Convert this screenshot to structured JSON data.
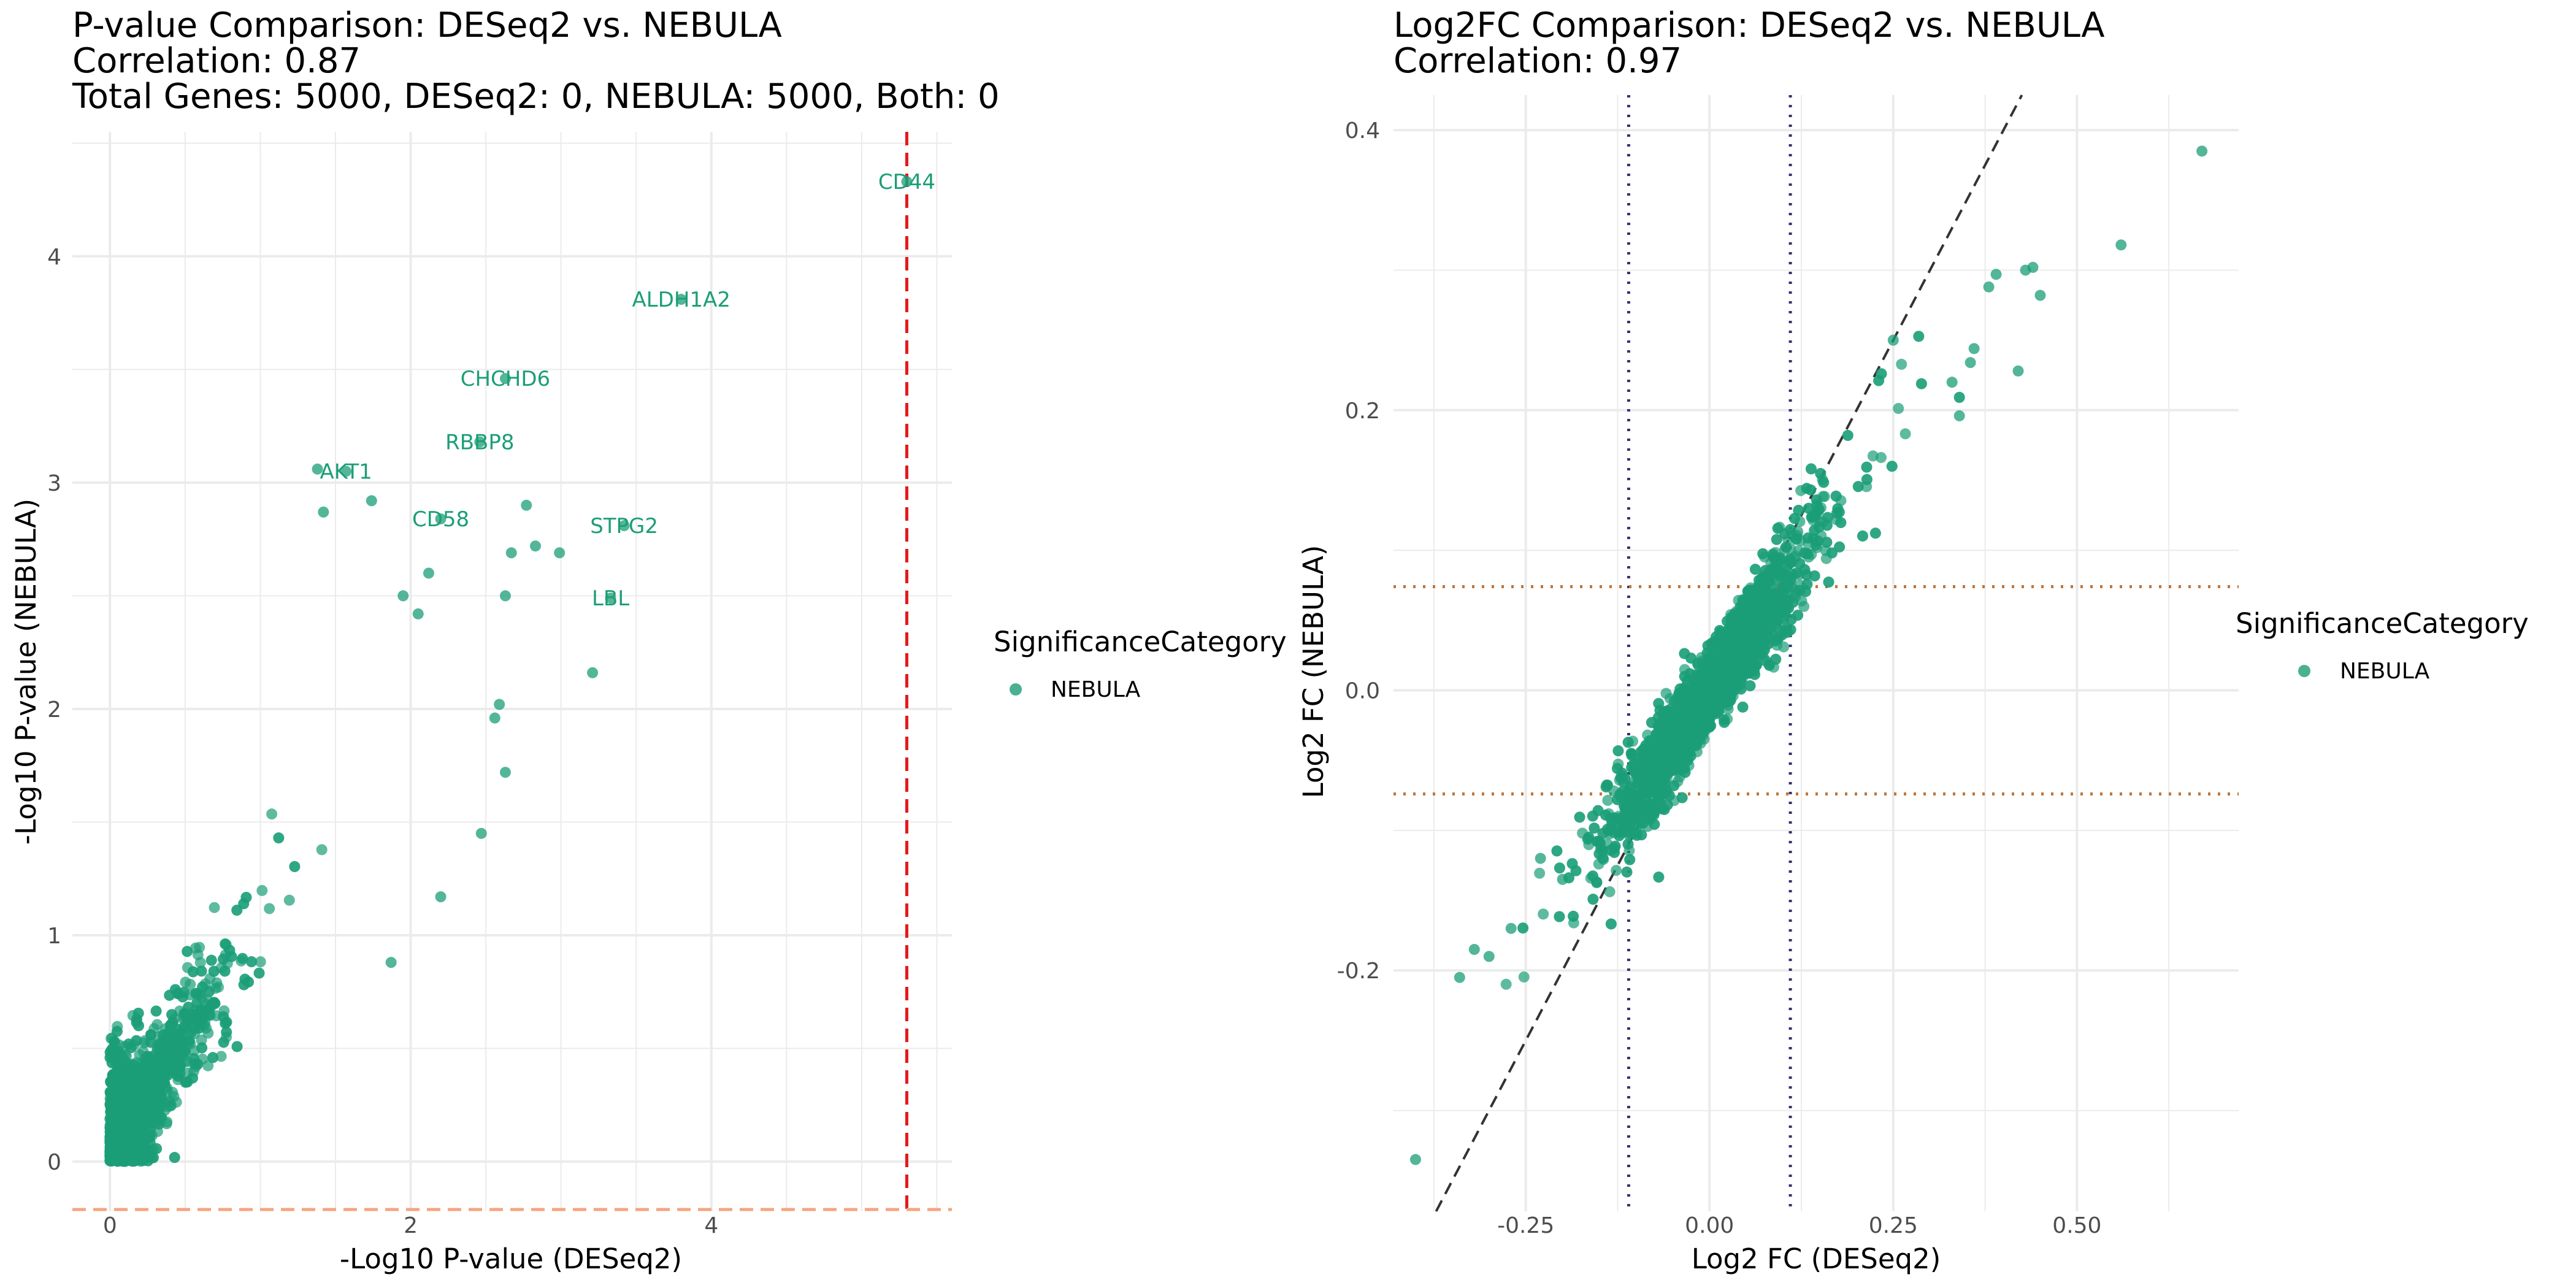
{
  "colors": {
    "nebula": "#1b9e77",
    "grid": "#ebebeb",
    "pvalue_vline": "#e31a1c",
    "pvalue_hline": "#f4a582",
    "fc_threshold_v": "#3b2f6e",
    "fc_threshold_h": "#c0763a",
    "identity_line": "#333333"
  },
  "chart_data": [
    {
      "type": "scatter",
      "title": "P-value Comparison: DESeq2 vs. NEBULA",
      "subtitle_lines": [
        "Correlation: 0.87",
        "Total Genes: 5000, DESeq2: 0, NEBULA: 5000, Both: 0"
      ],
      "xlabel": "-Log10 P-value (DESeq2)",
      "ylabel": "-Log10 P-value (NEBULA)",
      "xlim": [
        -0.25,
        5.6
      ],
      "ylim": [
        -0.22,
        4.55
      ],
      "x_ticks": [
        0,
        2,
        4
      ],
      "y_ticks": [
        0,
        1,
        2,
        3,
        4
      ],
      "grid": true,
      "reference_lines": {
        "vertical": 5.3,
        "horizontal": -0.22
      },
      "legend": {
        "title": "SignificanceCategory",
        "entries": [
          "NEBULA"
        ],
        "placement": "right"
      },
      "bulk_description": "approximately 5000 genes clustered near the origin, density fading toward upper right",
      "labeled_points": [
        {
          "label": "CD44",
          "x": 5.3,
          "y": 4.33
        },
        {
          "label": "ALDH1A2",
          "x": 3.8,
          "y": 3.81
        },
        {
          "label": "CHCHD6",
          "x": 2.63,
          "y": 3.46
        },
        {
          "label": "RBBP8",
          "x": 2.46,
          "y": 3.18
        },
        {
          "label": "AKT1",
          "x": 1.57,
          "y": 3.05
        },
        {
          "label": "CD58",
          "x": 2.2,
          "y": 2.84
        },
        {
          "label": "STPG2",
          "x": 3.42,
          "y": 2.81
        },
        {
          "label": "LBL",
          "x": 3.33,
          "y": 2.49
        }
      ],
      "notable_points": [
        {
          "x": 1.38,
          "y": 3.06
        },
        {
          "x": 1.42,
          "y": 2.87
        },
        {
          "x": 1.74,
          "y": 2.92
        },
        {
          "x": 2.77,
          "y": 2.9
        },
        {
          "x": 2.67,
          "y": 2.69
        },
        {
          "x": 2.83,
          "y": 2.72
        },
        {
          "x": 2.99,
          "y": 2.69
        },
        {
          "x": 3.21,
          "y": 2.16
        },
        {
          "x": 2.63,
          "y": 2.5
        },
        {
          "x": 2.56,
          "y": 1.96
        },
        {
          "x": 2.59,
          "y": 2.02
        },
        {
          "x": 2.63,
          "y": 1.72
        },
        {
          "x": 2.47,
          "y": 1.45
        },
        {
          "x": 2.2,
          "y": 1.17
        },
        {
          "x": 1.87,
          "y": 0.88
        },
        {
          "x": 2.12,
          "y": 2.6
        },
        {
          "x": 1.95,
          "y": 2.5
        },
        {
          "x": 2.05,
          "y": 2.42
        }
      ]
    },
    {
      "type": "scatter",
      "title": "Log2FC Comparison: DESeq2 vs. NEBULA",
      "subtitle_lines": [
        "Correlation: 0.97"
      ],
      "xlabel": "Log2 FC (DESeq2)",
      "ylabel": "Log2 FC (NEBULA)",
      "xlim": [
        -0.43,
        0.72
      ],
      "ylim": [
        -0.372,
        0.425
      ],
      "x_ticks": [
        -0.25,
        0.0,
        0.25,
        0.5
      ],
      "x_tick_labels": [
        "-0.25",
        "0.00",
        "0.25",
        "0.50"
      ],
      "y_ticks": [
        -0.2,
        0.0,
        0.2,
        0.4
      ],
      "y_tick_labels": [
        "-0.2",
        "0.0",
        "0.2",
        "0.4"
      ],
      "grid": true,
      "reference_lines": {
        "vertical": [
          -0.11,
          0.11
        ],
        "horizontal": [
          -0.074,
          0.074
        ],
        "identity_slope": 1
      },
      "legend": {
        "title": "SignificanceCategory",
        "entries": [
          "NEBULA"
        ],
        "placement": "right"
      },
      "bulk_description": "approximately 5000 genes along the diagonal, slope about 0.75, concentrated near 0",
      "notable_points": [
        {
          "x": 0.67,
          "y": 0.385
        },
        {
          "x": 0.56,
          "y": 0.318
        },
        {
          "x": 0.44,
          "y": 0.302
        },
        {
          "x": 0.43,
          "y": 0.3
        },
        {
          "x": 0.45,
          "y": 0.282
        },
        {
          "x": 0.39,
          "y": 0.297
        },
        {
          "x": 0.38,
          "y": 0.288
        },
        {
          "x": 0.42,
          "y": 0.228
        },
        {
          "x": 0.36,
          "y": 0.244
        },
        {
          "x": 0.355,
          "y": 0.234
        },
        {
          "x": 0.33,
          "y": 0.22
        },
        {
          "x": 0.34,
          "y": 0.196
        },
        {
          "x": 0.25,
          "y": 0.25
        },
        {
          "x": -0.4,
          "y": -0.335
        },
        {
          "x": -0.34,
          "y": -0.205
        },
        {
          "x": -0.32,
          "y": -0.185
        },
        {
          "x": -0.3,
          "y": -0.19
        },
        {
          "x": -0.27,
          "y": -0.17
        },
        {
          "x": -0.2,
          "y": -0.135
        },
        {
          "x": -0.23,
          "y": -0.12
        }
      ]
    }
  ]
}
